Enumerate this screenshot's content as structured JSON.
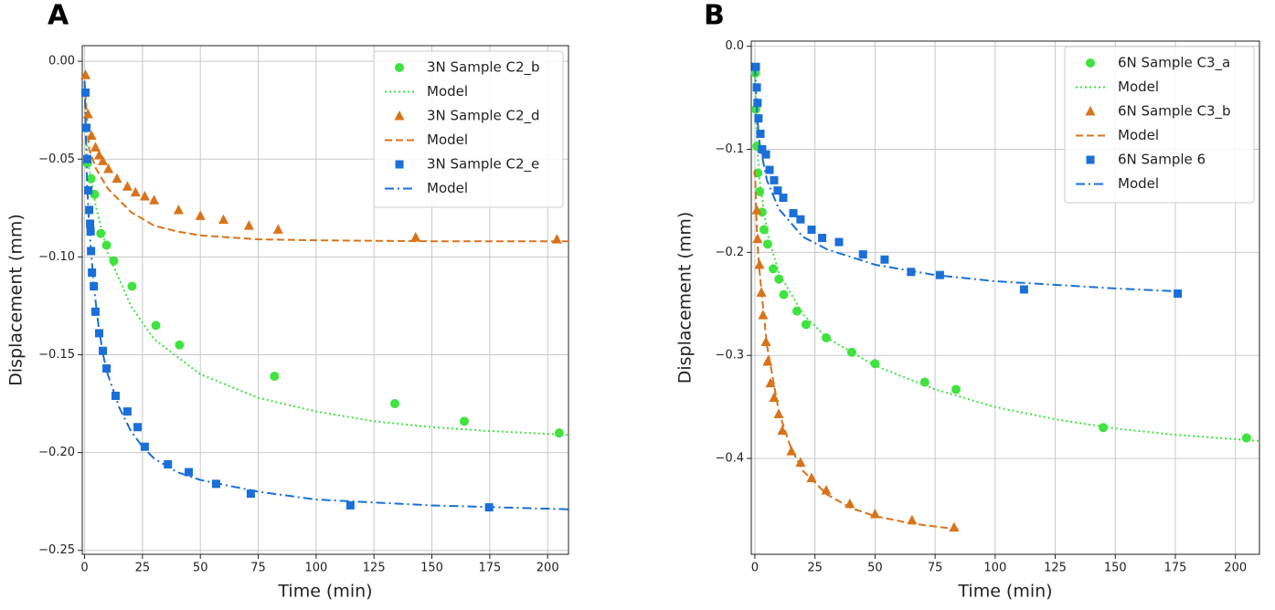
{
  "chart_data": [
    {
      "type": "line",
      "panel_label": "A",
      "xlabel": "Time (min)",
      "ylabel": "Displacement (mm)",
      "xlim": [
        -1,
        209
      ],
      "ylim": [
        -0.252,
        0.008
      ],
      "xticks": [
        0,
        25,
        50,
        75,
        100,
        125,
        150,
        175,
        200
      ],
      "yticks": [
        {
          "value": 0,
          "label": "0.00"
        },
        {
          "value": -0.05,
          "label": "−0.05"
        },
        {
          "value": -0.1,
          "label": "−0.10"
        },
        {
          "value": -0.15,
          "label": "−0.15"
        },
        {
          "value": -0.2,
          "label": "−0.20"
        },
        {
          "value": -0.25,
          "label": "−0.25"
        }
      ],
      "grid": true,
      "legend": "upper right",
      "series": [
        {
          "name": "3N Sample C2_b",
          "color": "#3fe33f",
          "marker": "circle",
          "x": [
            1.2,
            2.8,
            4.3,
            7,
            9.5,
            12.6,
            20.5,
            30.8,
            41,
            82,
            134,
            164,
            205
          ],
          "values": [
            -0.052,
            -0.06,
            -0.068,
            -0.088,
            -0.094,
            -0.102,
            -0.115,
            -0.135,
            -0.145,
            -0.161,
            -0.175,
            -0.184,
            -0.19
          ]
        },
        {
          "name": "Model",
          "color": "#3fe33f",
          "linestyle": "dotted",
          "x": [
            0,
            1,
            2,
            5,
            10,
            20,
            30,
            50,
            75,
            100,
            125,
            150,
            175,
            209
          ],
          "values": [
            -0.01,
            -0.045,
            -0.055,
            -0.075,
            -0.098,
            -0.125,
            -0.142,
            -0.16,
            -0.172,
            -0.179,
            -0.184,
            -0.187,
            -0.189,
            -0.191
          ]
        },
        {
          "name": "3N Sample C2_d",
          "color": "#d9731a",
          "marker": "triangle",
          "x": [
            0.4,
            1.5,
            3,
            4.7,
            6.3,
            7.9,
            10.3,
            14,
            18.5,
            22,
            26,
            30,
            40.6,
            50,
            60,
            71,
            83.6,
            143,
            204
          ],
          "values": [
            -0.007,
            -0.027,
            -0.038,
            -0.044,
            -0.048,
            -0.051,
            -0.055,
            -0.06,
            -0.064,
            -0.067,
            -0.069,
            -0.071,
            -0.076,
            -0.079,
            -0.081,
            -0.084,
            -0.086,
            -0.09,
            -0.091
          ]
        },
        {
          "name": "Model",
          "color": "#d9731a",
          "linestyle": "dashed",
          "x": [
            0,
            2,
            5,
            10,
            20,
            30,
            40,
            50,
            75,
            100,
            150,
            209
          ],
          "values": [
            -0.01,
            -0.045,
            -0.055,
            -0.065,
            -0.077,
            -0.084,
            -0.087,
            -0.089,
            -0.091,
            -0.0915,
            -0.092,
            -0.092
          ]
        },
        {
          "name": "3N Sample C2_e",
          "color": "#1a6fd8",
          "marker": "square",
          "x": [
            0.4,
            0.8,
            1.2,
            1.6,
            2,
            2.4,
            2.6,
            2.8,
            3.2,
            4,
            4.7,
            6.3,
            7.9,
            9.5,
            13.4,
            18.5,
            22.9,
            26,
            36,
            45,
            56.8,
            71.8,
            114.8,
            174.7
          ],
          "values": [
            -0.016,
            -0.034,
            -0.05,
            -0.066,
            -0.076,
            -0.083,
            -0.087,
            -0.097,
            -0.108,
            -0.115,
            -0.128,
            -0.139,
            -0.148,
            -0.157,
            -0.171,
            -0.179,
            -0.187,
            -0.197,
            -0.206,
            -0.21,
            -0.216,
            -0.221,
            -0.227,
            -0.228
          ]
        },
        {
          "name": "Model",
          "color": "#1a6fd8",
          "linestyle": "dashdot",
          "x": [
            0,
            1,
            2,
            4,
            6,
            8,
            10,
            15,
            20,
            25,
            30,
            40,
            50,
            75,
            100,
            150,
            209
          ],
          "values": [
            -0.01,
            -0.06,
            -0.085,
            -0.115,
            -0.135,
            -0.15,
            -0.16,
            -0.177,
            -0.189,
            -0.197,
            -0.203,
            -0.21,
            -0.214,
            -0.22,
            -0.224,
            -0.227,
            -0.229
          ]
        }
      ]
    },
    {
      "type": "line",
      "panel_label": "B",
      "xlabel": "Time (min)",
      "ylabel": "Displacement (mm)",
      "xlim": [
        -1.5,
        210
      ],
      "ylim": [
        -0.493,
        0.005
      ],
      "xticks": [
        0,
        25,
        50,
        75,
        100,
        125,
        150,
        175,
        200
      ],
      "yticks": [
        {
          "value": 0,
          "label": "0.0"
        },
        {
          "value": -0.1,
          "label": "−0.1"
        },
        {
          "value": -0.2,
          "label": "−0.2"
        },
        {
          "value": -0.3,
          "label": "−0.3"
        },
        {
          "value": -0.4,
          "label": "−0.4"
        }
      ],
      "grid": true,
      "legend": "upper right",
      "series": [
        {
          "name": "6N Sample C3_a",
          "color": "#3fe33f",
          "marker": "circle",
          "x": [
            0.2,
            0.4,
            0.8,
            1.2,
            2,
            3,
            3.8,
            5.3,
            7.6,
            10,
            12,
            17.5,
            21.3,
            29.7,
            40.3,
            50,
            70.7,
            83.7,
            145,
            204.6
          ],
          "values": [
            -0.026,
            -0.061,
            -0.097,
            -0.123,
            -0.141,
            -0.161,
            -0.178,
            -0.192,
            -0.216,
            -0.226,
            -0.241,
            -0.257,
            -0.27,
            -0.283,
            -0.297,
            -0.308,
            -0.326,
            -0.333,
            -0.37,
            -0.38
          ]
        },
        {
          "name": "Model",
          "color": "#3fe33f",
          "linestyle": "dotted",
          "x": [
            0,
            1,
            2,
            5,
            10,
            20,
            30,
            50,
            75,
            100,
            125,
            150,
            175,
            210
          ],
          "values": [
            -0.03,
            -0.1,
            -0.13,
            -0.18,
            -0.22,
            -0.26,
            -0.283,
            -0.31,
            -0.333,
            -0.35,
            -0.362,
            -0.371,
            -0.377,
            -0.383
          ]
        },
        {
          "name": "6N Sample C3_b",
          "color": "#d9731a",
          "marker": "triangle",
          "x": [
            0.8,
            1.1,
            1.9,
            2.7,
            3.4,
            4.6,
            5.3,
            6.5,
            8,
            9.9,
            11.4,
            15.2,
            19,
            23.6,
            29.7,
            39.5,
            50,
            65.4,
            82.9
          ],
          "values": [
            -0.159,
            -0.187,
            -0.212,
            -0.239,
            -0.261,
            -0.287,
            -0.306,
            -0.327,
            -0.341,
            -0.357,
            -0.373,
            -0.393,
            -0.404,
            -0.419,
            -0.431,
            -0.444,
            -0.454,
            -0.46,
            -0.467
          ]
        },
        {
          "name": "Model",
          "color": "#d9731a",
          "linestyle": "dashed",
          "x": [
            0,
            1,
            2,
            5,
            10,
            15,
            20,
            30,
            40,
            50,
            65,
            85
          ],
          "values": [
            -0.12,
            -0.19,
            -0.22,
            -0.29,
            -0.355,
            -0.39,
            -0.412,
            -0.435,
            -0.448,
            -0.456,
            -0.463,
            -0.469
          ]
        },
        {
          "name": "6N Sample 6",
          "color": "#1a6fd8",
          "marker": "square",
          "x": [
            0.4,
            0.8,
            1.1,
            1.5,
            2.3,
            3,
            4.6,
            6.1,
            8,
            9.5,
            11.8,
            16,
            19,
            23.6,
            28,
            35,
            45,
            54,
            65,
            77,
            112,
            176
          ],
          "values": [
            -0.02,
            -0.04,
            -0.055,
            -0.07,
            -0.085,
            -0.1,
            -0.105,
            -0.12,
            -0.13,
            -0.14,
            -0.147,
            -0.162,
            -0.168,
            -0.178,
            -0.186,
            -0.19,
            -0.202,
            -0.207,
            -0.219,
            -0.222,
            -0.236,
            -0.24
          ]
        },
        {
          "name": "Model",
          "color": "#1a6fd8",
          "linestyle": "dashdot",
          "x": [
            0,
            1,
            2,
            5,
            10,
            20,
            30,
            50,
            75,
            100,
            150,
            177
          ],
          "values": [
            -0.02,
            -0.07,
            -0.095,
            -0.13,
            -0.158,
            -0.185,
            -0.197,
            -0.212,
            -0.222,
            -0.228,
            -0.235,
            -0.238
          ]
        }
      ]
    }
  ]
}
